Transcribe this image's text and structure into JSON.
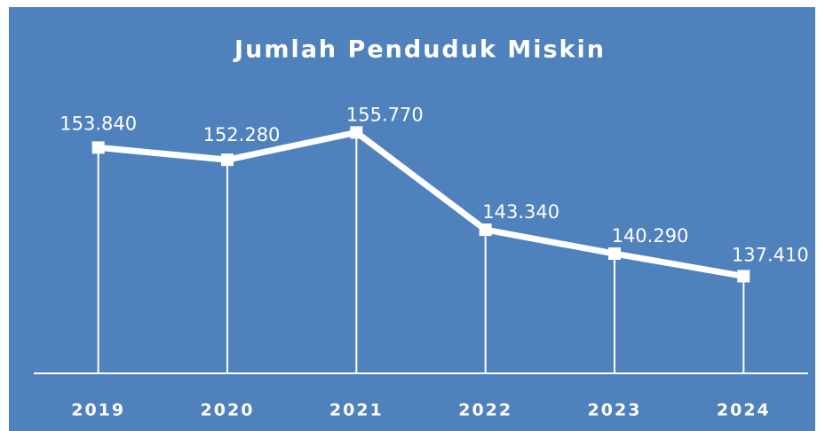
{
  "chart_data": {
    "type": "line",
    "title": "Jumlah Penduduk Miskin",
    "categories": [
      "2019",
      "2020",
      "2021",
      "2022",
      "2023",
      "2024"
    ],
    "values": [
      153840,
      152280,
      155770,
      143340,
      140290,
      137410
    ],
    "value_labels": [
      "153.840",
      "152.280",
      "155.770",
      "143.340",
      "140.290",
      "137.410"
    ],
    "color": "#ffffff",
    "background": "#4f81bd",
    "ylim": [
      125000,
      160000
    ]
  }
}
